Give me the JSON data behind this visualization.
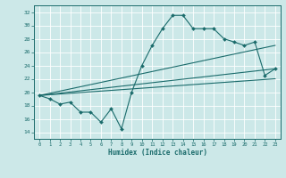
{
  "xlabel": "Humidex (Indice chaleur)",
  "ylabel": "",
  "bg_color": "#cce8e8",
  "grid_color": "#ffffff",
  "line_color": "#1a6b6b",
  "xlim": [
    -0.5,
    23.5
  ],
  "ylim": [
    13,
    33
  ],
  "xticks": [
    0,
    1,
    2,
    3,
    4,
    5,
    6,
    7,
    8,
    9,
    10,
    11,
    12,
    13,
    14,
    15,
    16,
    17,
    18,
    19,
    20,
    21,
    22,
    23
  ],
  "yticks": [
    14,
    16,
    18,
    20,
    22,
    24,
    26,
    28,
    30,
    32
  ],
  "main_x": [
    0,
    1,
    2,
    3,
    4,
    5,
    6,
    7,
    8,
    9,
    10,
    11,
    12,
    13,
    14,
    15,
    16,
    17,
    18,
    19,
    20,
    21,
    22,
    23
  ],
  "main_y": [
    19.5,
    19.0,
    18.2,
    18.5,
    17.0,
    17.0,
    15.5,
    17.5,
    14.5,
    20.0,
    24.0,
    27.0,
    29.5,
    31.5,
    31.5,
    29.5,
    29.5,
    29.5,
    28.0,
    27.5,
    27.0,
    27.5,
    22.5,
    23.5
  ],
  "line1_x": [
    0,
    23
  ],
  "line1_y": [
    19.5,
    27.0
  ],
  "line2_x": [
    0,
    23
  ],
  "line2_y": [
    19.5,
    23.5
  ],
  "line3_x": [
    0,
    23
  ],
  "line3_y": [
    19.5,
    22.0
  ]
}
